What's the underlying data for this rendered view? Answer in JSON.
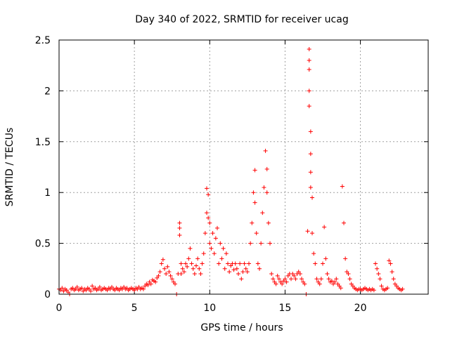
{
  "chart_data": {
    "type": "scatter",
    "title": "Day 340 of 2022, SRMTID for receiver ucag",
    "xlabel": "GPS time / hours",
    "ylabel": "SRMTID / TECUs",
    "xlim": [
      0,
      24.5
    ],
    "ylim": [
      0,
      2.5
    ],
    "xticks": [
      0,
      5,
      10,
      15,
      20
    ],
    "xtick_labels": [
      "0",
      "5",
      "10",
      "15",
      "20"
    ],
    "yticks": [
      0,
      0.5,
      1,
      1.5,
      2,
      2.5
    ],
    "ytick_labels": [
      "0",
      "0.5",
      "1",
      "1.5",
      "2",
      "2.5"
    ],
    "grid": true,
    "marker": "plus",
    "color": "#ff0000",
    "series": [
      {
        "name": "SRMTID",
        "points": [
          [
            0.0,
            0.05
          ],
          [
            0.1,
            0.04
          ],
          [
            0.2,
            0.06
          ],
          [
            0.3,
            0.03
          ],
          [
            0.4,
            0.05
          ],
          [
            0.5,
            0.04
          ],
          [
            0.6,
            0.02
          ],
          [
            0.7,
            0.0
          ],
          [
            0.8,
            0.05
          ],
          [
            0.9,
            0.06
          ],
          [
            1.0,
            0.04
          ],
          [
            1.1,
            0.05
          ],
          [
            1.2,
            0.07
          ],
          [
            1.3,
            0.04
          ],
          [
            1.4,
            0.05
          ],
          [
            1.5,
            0.06
          ],
          [
            1.6,
            0.03
          ],
          [
            1.7,
            0.05
          ],
          [
            1.8,
            0.04
          ],
          [
            1.9,
            0.06
          ],
          [
            2.0,
            0.05
          ],
          [
            2.1,
            0.03
          ],
          [
            2.2,
            0.08
          ],
          [
            2.3,
            0.05
          ],
          [
            2.4,
            0.06
          ],
          [
            2.5,
            0.04
          ],
          [
            2.6,
            0.05
          ],
          [
            2.7,
            0.07
          ],
          [
            2.8,
            0.04
          ],
          [
            2.9,
            0.05
          ],
          [
            3.0,
            0.06
          ],
          [
            3.1,
            0.05
          ],
          [
            3.2,
            0.04
          ],
          [
            3.3,
            0.06
          ],
          [
            3.4,
            0.05
          ],
          [
            3.5,
            0.07
          ],
          [
            3.6,
            0.05
          ],
          [
            3.7,
            0.04
          ],
          [
            3.8,
            0.06
          ],
          [
            3.9,
            0.05
          ],
          [
            4.0,
            0.04
          ],
          [
            4.1,
            0.06
          ],
          [
            4.2,
            0.05
          ],
          [
            4.3,
            0.07
          ],
          [
            4.4,
            0.05
          ],
          [
            4.5,
            0.06
          ],
          [
            4.6,
            0.04
          ],
          [
            4.7,
            0.05
          ],
          [
            4.8,
            0.06
          ],
          [
            4.9,
            0.05
          ],
          [
            5.0,
            0.04
          ],
          [
            5.1,
            0.06
          ],
          [
            5.2,
            0.05
          ],
          [
            5.3,
            0.07
          ],
          [
            5.4,
            0.05
          ],
          [
            5.5,
            0.06
          ],
          [
            5.6,
            0.05
          ],
          [
            5.7,
            0.08
          ],
          [
            5.8,
            0.1
          ],
          [
            5.9,
            0.09
          ],
          [
            6.0,
            0.12
          ],
          [
            6.1,
            0.1
          ],
          [
            6.2,
            0.14
          ],
          [
            6.3,
            0.13
          ],
          [
            6.4,
            0.12
          ],
          [
            6.5,
            0.16
          ],
          [
            6.6,
            0.18
          ],
          [
            6.7,
            0.22
          ],
          [
            6.8,
            0.3
          ],
          [
            6.9,
            0.34
          ],
          [
            7.0,
            0.25
          ],
          [
            7.1,
            0.2
          ],
          [
            7.2,
            0.27
          ],
          [
            7.3,
            0.22
          ],
          [
            7.4,
            0.18
          ],
          [
            7.5,
            0.15
          ],
          [
            7.6,
            0.12
          ],
          [
            7.7,
            0.1
          ],
          [
            7.8,
            0.0
          ],
          [
            7.9,
            0.2
          ],
          [
            8.0,
            0.7
          ],
          [
            8.0,
            0.65
          ],
          [
            8.0,
            0.58
          ],
          [
            8.1,
            0.3
          ],
          [
            8.1,
            0.2
          ],
          [
            8.2,
            0.25
          ],
          [
            8.3,
            0.22
          ],
          [
            8.4,
            0.3
          ],
          [
            8.5,
            0.27
          ],
          [
            8.6,
            0.35
          ],
          [
            8.7,
            0.45
          ],
          [
            8.8,
            0.3
          ],
          [
            8.9,
            0.25
          ],
          [
            9.0,
            0.2
          ],
          [
            9.1,
            0.28
          ],
          [
            9.2,
            0.35
          ],
          [
            9.3,
            0.25
          ],
          [
            9.4,
            0.2
          ],
          [
            9.5,
            0.3
          ],
          [
            9.6,
            0.4
          ],
          [
            9.7,
            0.6
          ],
          [
            9.8,
            0.8
          ],
          [
            9.8,
            1.04
          ],
          [
            9.9,
            0.98
          ],
          [
            9.9,
            0.75
          ],
          [
            10.0,
            0.7
          ],
          [
            10.0,
            0.5
          ],
          [
            10.1,
            0.45
          ],
          [
            10.2,
            0.6
          ],
          [
            10.3,
            0.4
          ],
          [
            10.4,
            0.55
          ],
          [
            10.5,
            0.65
          ],
          [
            10.6,
            0.3
          ],
          [
            10.7,
            0.5
          ],
          [
            10.8,
            0.35
          ],
          [
            10.9,
            0.45
          ],
          [
            11.0,
            0.25
          ],
          [
            11.1,
            0.4
          ],
          [
            11.2,
            0.3
          ],
          [
            11.3,
            0.22
          ],
          [
            11.4,
            0.28
          ],
          [
            11.5,
            0.3
          ],
          [
            11.6,
            0.24
          ],
          [
            11.7,
            0.3
          ],
          [
            11.8,
            0.25
          ],
          [
            11.9,
            0.2
          ],
          [
            12.0,
            0.3
          ],
          [
            12.1,
            0.15
          ],
          [
            12.2,
            0.22
          ],
          [
            12.3,
            0.3
          ],
          [
            12.4,
            0.25
          ],
          [
            12.5,
            0.22
          ],
          [
            12.6,
            0.3
          ],
          [
            12.7,
            0.5
          ],
          [
            12.8,
            0.7
          ],
          [
            12.9,
            1.0
          ],
          [
            13.0,
            1.22
          ],
          [
            13.0,
            0.9
          ],
          [
            13.1,
            0.6
          ],
          [
            13.2,
            0.3
          ],
          [
            13.3,
            0.25
          ],
          [
            13.4,
            0.5
          ],
          [
            13.5,
            0.8
          ],
          [
            13.6,
            1.05
          ],
          [
            13.7,
            1.41
          ],
          [
            13.8,
            1.23
          ],
          [
            13.8,
            1.0
          ],
          [
            13.9,
            0.7
          ],
          [
            14.0,
            0.5
          ],
          [
            14.1,
            0.2
          ],
          [
            14.2,
            0.15
          ],
          [
            14.3,
            0.12
          ],
          [
            14.4,
            0.1
          ],
          [
            14.5,
            0.18
          ],
          [
            14.6,
            0.15
          ],
          [
            14.7,
            0.12
          ],
          [
            14.8,
            0.1
          ],
          [
            14.9,
            0.13
          ],
          [
            15.0,
            0.15
          ],
          [
            15.1,
            0.12
          ],
          [
            15.2,
            0.18
          ],
          [
            15.3,
            0.2
          ],
          [
            15.4,
            0.15
          ],
          [
            15.5,
            0.2
          ],
          [
            15.6,
            0.18
          ],
          [
            15.7,
            0.15
          ],
          [
            15.8,
            0.2
          ],
          [
            15.9,
            0.22
          ],
          [
            16.0,
            0.2
          ],
          [
            16.1,
            0.15
          ],
          [
            16.2,
            0.12
          ],
          [
            16.3,
            0.1
          ],
          [
            16.4,
            0.0
          ],
          [
            16.5,
            0.62
          ],
          [
            16.6,
            2.41
          ],
          [
            16.6,
            2.3
          ],
          [
            16.6,
            2.21
          ],
          [
            16.6,
            2.0
          ],
          [
            16.6,
            1.85
          ],
          [
            16.7,
            1.6
          ],
          [
            16.7,
            1.38
          ],
          [
            16.7,
            1.2
          ],
          [
            16.7,
            1.05
          ],
          [
            16.8,
            0.95
          ],
          [
            16.8,
            0.6
          ],
          [
            16.9,
            0.4
          ],
          [
            17.0,
            0.3
          ],
          [
            17.1,
            0.15
          ],
          [
            17.2,
            0.12
          ],
          [
            17.3,
            0.1
          ],
          [
            17.4,
            0.15
          ],
          [
            17.5,
            0.3
          ],
          [
            17.6,
            0.66
          ],
          [
            17.7,
            0.35
          ],
          [
            17.8,
            0.2
          ],
          [
            17.9,
            0.15
          ],
          [
            18.0,
            0.12
          ],
          [
            18.1,
            0.13
          ],
          [
            18.2,
            0.1
          ],
          [
            18.3,
            0.12
          ],
          [
            18.4,
            0.15
          ],
          [
            18.5,
            0.1
          ],
          [
            18.6,
            0.08
          ],
          [
            18.7,
            0.06
          ],
          [
            18.8,
            1.06
          ],
          [
            18.9,
            0.7
          ],
          [
            19.0,
            0.35
          ],
          [
            19.1,
            0.22
          ],
          [
            19.2,
            0.2
          ],
          [
            19.3,
            0.15
          ],
          [
            19.4,
            0.1
          ],
          [
            19.5,
            0.08
          ],
          [
            19.6,
            0.06
          ],
          [
            19.7,
            0.05
          ],
          [
            19.8,
            0.04
          ],
          [
            19.9,
            0.05
          ],
          [
            20.0,
            0.05
          ],
          [
            20.1,
            0.04
          ],
          [
            20.2,
            0.05
          ],
          [
            20.3,
            0.06
          ],
          [
            20.4,
            0.05
          ],
          [
            20.5,
            0.04
          ],
          [
            20.6,
            0.05
          ],
          [
            20.7,
            0.04
          ],
          [
            20.8,
            0.05
          ],
          [
            20.9,
            0.04
          ],
          [
            21.0,
            0.3
          ],
          [
            21.1,
            0.25
          ],
          [
            21.2,
            0.2
          ],
          [
            21.3,
            0.15
          ],
          [
            21.4,
            0.08
          ],
          [
            21.5,
            0.05
          ],
          [
            21.6,
            0.04
          ],
          [
            21.7,
            0.05
          ],
          [
            21.8,
            0.06
          ],
          [
            21.9,
            0.33
          ],
          [
            22.0,
            0.3
          ],
          [
            22.1,
            0.22
          ],
          [
            22.2,
            0.15
          ],
          [
            22.3,
            0.1
          ],
          [
            22.4,
            0.08
          ],
          [
            22.5,
            0.06
          ],
          [
            22.6,
            0.05
          ],
          [
            22.7,
            0.04
          ],
          [
            22.8,
            0.05
          ]
        ]
      }
    ]
  }
}
